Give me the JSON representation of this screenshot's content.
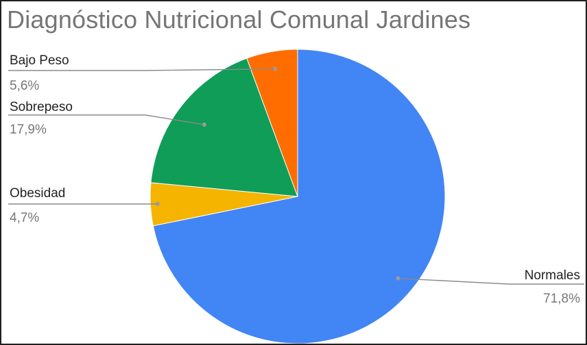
{
  "chart_data": {
    "type": "pie",
    "title": "Diagnóstico Nutricional Comunal Jardines",
    "legend": "labels-outside-with-leader-lines",
    "slices": [
      {
        "label": "Normales",
        "value": 71.8,
        "value_label": "71,8%",
        "color": "#4285F4"
      },
      {
        "label": "Obesidad",
        "value": 4.7,
        "value_label": "4,7%",
        "color": "#F4B400"
      },
      {
        "label": "Sobrepeso",
        "value": 17.9,
        "value_label": "17,9%",
        "color": "#0F9D58"
      },
      {
        "label": "Bajo Peso",
        "value": 5.6,
        "value_label": "5,6%",
        "color": "#FF6D01"
      }
    ]
  }
}
